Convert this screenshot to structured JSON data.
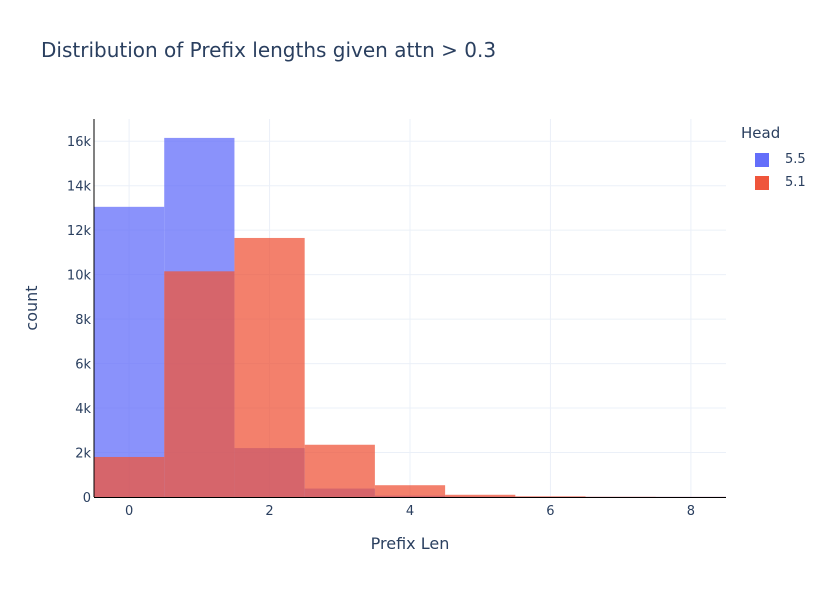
{
  "chart_data": {
    "type": "bar",
    "title": "Distribution of Prefix lengths given attn > 0.3",
    "xlabel": "Prefix Len",
    "ylabel": "count",
    "xlim": [
      -0.5,
      8.5
    ],
    "ylim": [
      0,
      17000
    ],
    "x_ticks": [
      0,
      2,
      4,
      6,
      8
    ],
    "y_ticks": [
      0,
      2000,
      4000,
      6000,
      8000,
      10000,
      12000,
      14000,
      16000
    ],
    "y_tick_labels": [
      "0",
      "2k",
      "4k",
      "6k",
      "8k",
      "10k",
      "12k",
      "14k",
      "16k"
    ],
    "barmode": "overlay",
    "bin_width": 1,
    "grid": true,
    "legend_title": "Head",
    "legend_position": "top-right",
    "series": [
      {
        "name": "5.5",
        "color": "#636efa",
        "x": [
          0,
          1,
          2,
          3,
          4,
          5,
          6,
          7,
          8
        ],
        "values": [
          13050,
          16150,
          2200,
          380,
          60,
          20,
          10,
          5,
          5
        ]
      },
      {
        "name": "5.1",
        "color": "#ef553b",
        "x": [
          0,
          1,
          2,
          3,
          4,
          5,
          6,
          7,
          8
        ],
        "values": [
          1800,
          10150,
          11650,
          2350,
          530,
          100,
          30,
          10,
          5
        ]
      }
    ]
  }
}
